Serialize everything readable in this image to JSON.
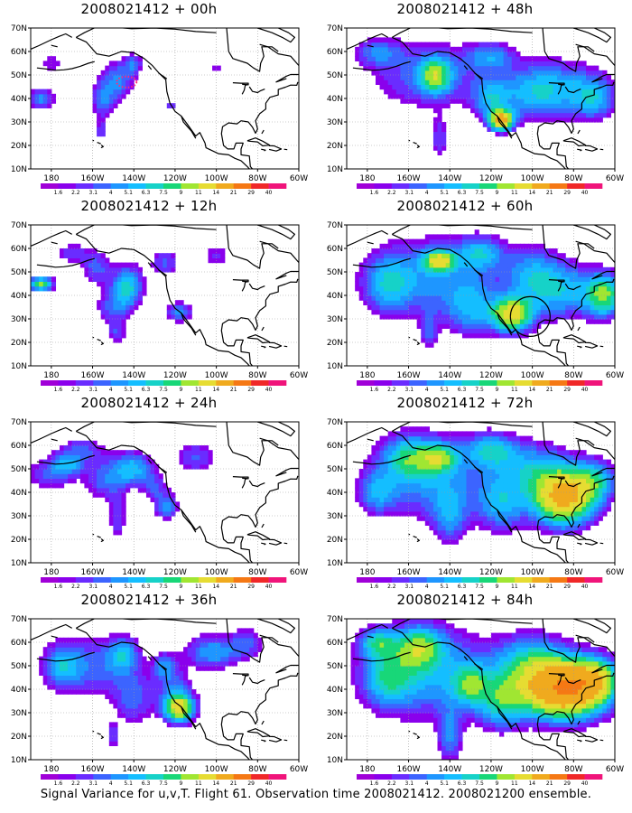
{
  "caption": "Signal Variance for u,v,T. Flight 61. Observation time 2008021412. 2008021200 ensemble.",
  "colorbar": {
    "labels": [
      "1.6",
      "2.2",
      "3.1",
      "4",
      "5.1",
      "6.3",
      "7.5",
      "9",
      "11",
      "14",
      "21",
      "29",
      "40"
    ],
    "colors": [
      "#a000d8",
      "#8a00ec",
      "#6a2cff",
      "#3c64ff",
      "#1e96ff",
      "#14beff",
      "#16d2c8",
      "#18d778",
      "#a0e632",
      "#e6dc32",
      "#f0aa1e",
      "#f57814",
      "#f02828",
      "#f0147a"
    ]
  },
  "axes": {
    "y_labels": [
      "70N",
      "60N",
      "50N",
      "40N",
      "30N",
      "20N",
      "10N"
    ],
    "x_labels": [
      "180",
      "160W",
      "140W",
      "120W",
      "100W",
      "80W",
      "60W"
    ],
    "lat_range": [
      10,
      70
    ],
    "lon_range": [
      -190,
      -60
    ]
  },
  "panels": [
    {
      "title": "2008021412 + 00h",
      "lead": 0
    },
    {
      "title": "2008021412 + 12h",
      "lead": 12
    },
    {
      "title": "2008021412 + 24h",
      "lead": 24
    },
    {
      "title": "2008021412 + 36h",
      "lead": 36
    },
    {
      "title": "2008021412 + 48h",
      "lead": 48
    },
    {
      "title": "2008021412 + 60h",
      "lead": 60
    },
    {
      "title": "2008021412 + 72h",
      "lead": 72
    },
    {
      "title": "2008021412 + 84h",
      "lead": 84
    }
  ]
}
